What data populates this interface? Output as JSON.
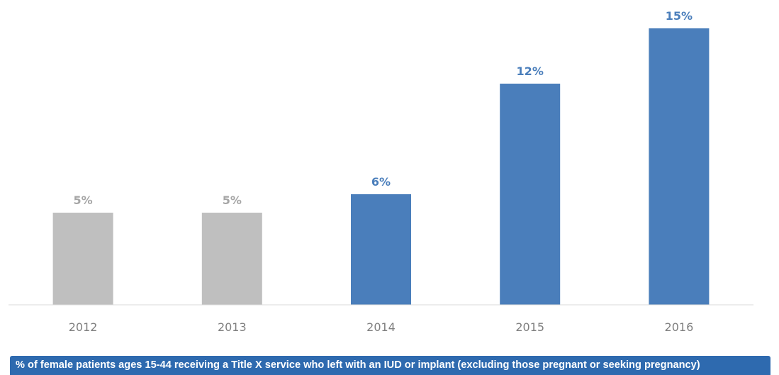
{
  "chart_data": {
    "type": "bar",
    "categories": [
      "2012",
      "2013",
      "2014",
      "2015",
      "2016"
    ],
    "values": [
      5,
      5,
      6,
      12,
      15
    ],
    "data_labels": [
      "5%",
      "5%",
      "6%",
      "12%",
      "15%"
    ],
    "bar_colors": [
      "#bfbfbf",
      "#bfbfbf",
      "#4a7ebb",
      "#4a7ebb",
      "#4a7ebb"
    ],
    "label_colors": [
      "#a6a6a6",
      "#a6a6a6",
      "#4a7ebb",
      "#4a7ebb",
      "#4a7ebb"
    ],
    "title": "",
    "xlabel": "",
    "ylabel": "",
    "ylim": [
      0,
      15
    ],
    "grid": false,
    "legend": "none"
  },
  "footer": {
    "text": "% of female patients ages 15-44 receiving a Title X service who left with an IUD or implant (excluding those pregnant or seeking pregnancy)",
    "background": "#2e6aaf"
  }
}
